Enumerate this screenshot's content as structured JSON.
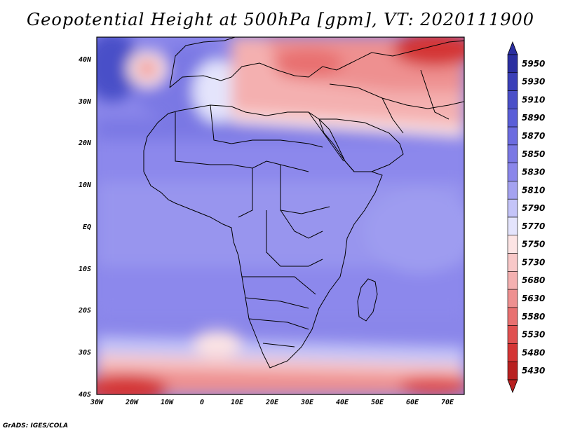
{
  "title": "Geopotential Height at 500hPa [gpm], VT: 2020111900",
  "credit": "GrADS: IGES/COLA",
  "map": {
    "lat_labels": [
      "40N",
      "30N",
      "20N",
      "10N",
      "EQ",
      "10S",
      "20S",
      "30S",
      "40S"
    ],
    "lon_labels": [
      "30W",
      "20W",
      "10W",
      "0",
      "10E",
      "20E",
      "30E",
      "40E",
      "50E",
      "60E",
      "70E"
    ]
  },
  "colorbar": {
    "levels": [
      "5950",
      "5930",
      "5910",
      "5890",
      "5870",
      "5850",
      "5830",
      "5810",
      "5790",
      "5770",
      "5750",
      "5730",
      "5680",
      "5630",
      "5580",
      "5530",
      "5480",
      "5430"
    ],
    "colors": [
      "#2a2ea0",
      "#3a3fb8",
      "#4a4fc8",
      "#5a5ed8",
      "#6c6ce0",
      "#7a78e4",
      "#8a86ea",
      "#a4a2f0",
      "#c4c4f8",
      "#e4e4fc",
      "#fce4e4",
      "#f8c8c8",
      "#f4b0b0",
      "#ee9090",
      "#e87070",
      "#e05050",
      "#d43434",
      "#b82020"
    ]
  },
  "chart_data": {
    "type": "heatmap",
    "title": "Geopotential Height at 500hPa [gpm], VT: 2020111900",
    "variable": "Geopotential Height at 500hPa",
    "units": "gpm",
    "valid_time": "2020111900",
    "lon_range": [
      -30,
      75
    ],
    "lat_range": [
      -40,
      45
    ],
    "color_levels": [
      5430,
      5480,
      5530,
      5580,
      5630,
      5680,
      5730,
      5750,
      5770,
      5790,
      5810,
      5830,
      5850,
      5870,
      5890,
      5910,
      5930,
      5950
    ]
  }
}
